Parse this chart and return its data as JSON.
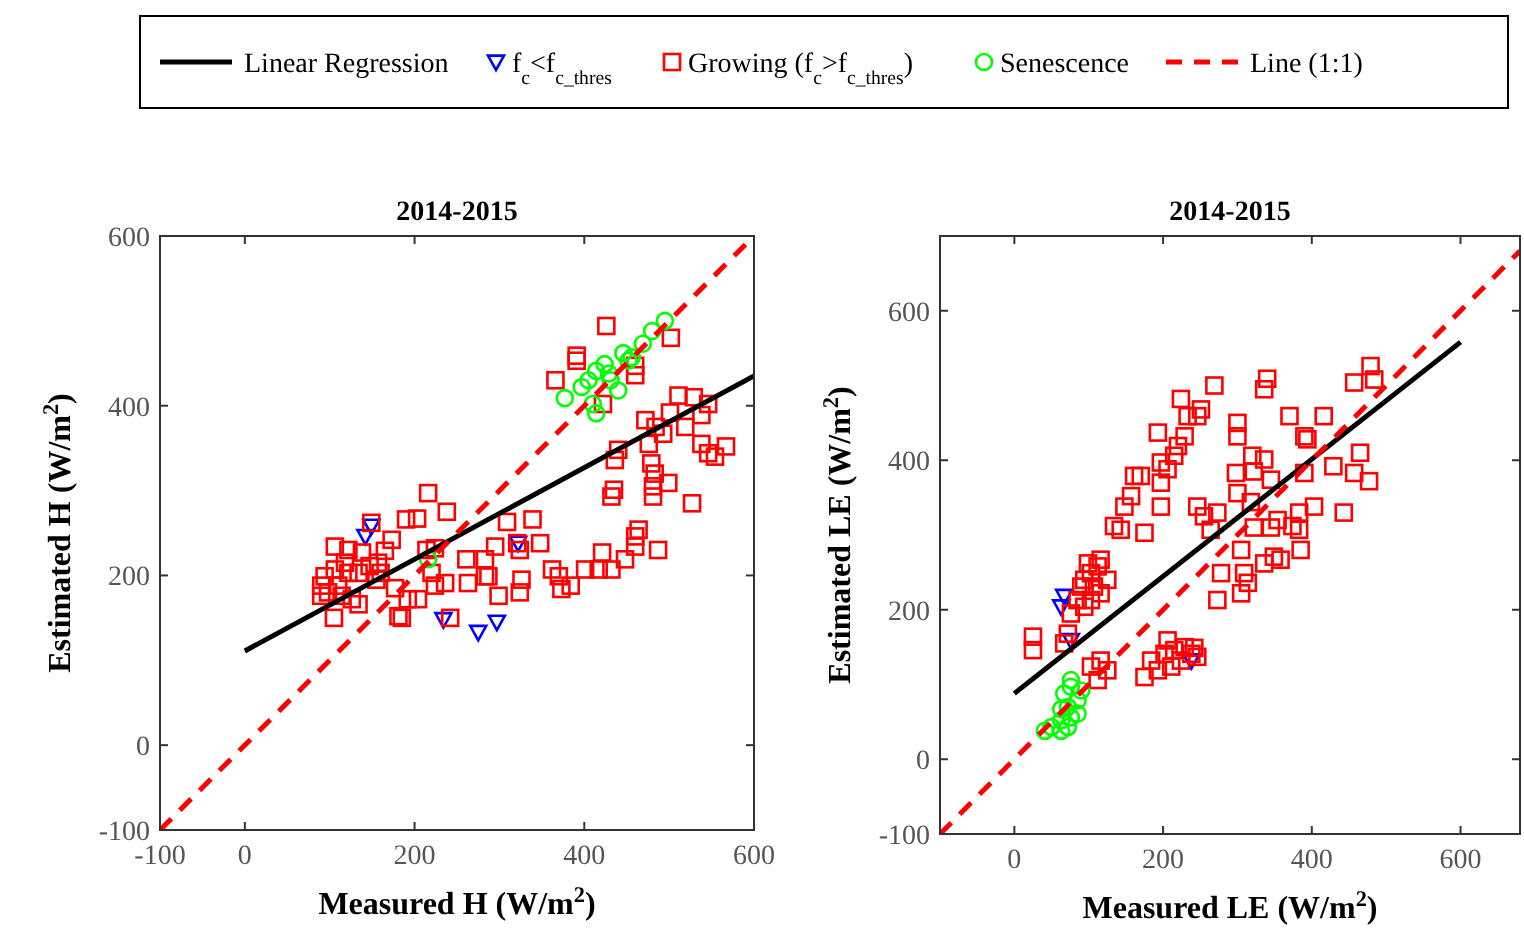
{
  "chart_data": [
    {
      "type": "scatter",
      "title": "2014-2015",
      "xlabel": "Measured H (W/m$^{2}$)",
      "ylabel": "Estimated H (W/m$^{2}$)",
      "xlim": [
        -100,
        600
      ],
      "ylim": [
        -100,
        600
      ],
      "xticks": [
        -100,
        0,
        200,
        400,
        600
      ],
      "yticks": [
        -100,
        0,
        200,
        400,
        600
      ],
      "grid": false,
      "legend": "top",
      "series": [
        {
          "name": "Linear Regression",
          "type": "line",
          "color": "#000000",
          "line_style": "solid",
          "marker": "none",
          "x": [
            0,
            600
          ],
          "values": [
            111,
            435
          ]
        },
        {
          "name": "f$_{c}$<f$_{c_thres}$",
          "type": "scatter",
          "color": "#0000ff",
          "marker": "triangle",
          "x": [
            142,
            149,
            234,
            275,
            297,
            322
          ],
          "values": [
            246,
            258,
            148,
            133,
            145,
            238
          ]
        },
        {
          "name": "Growing (f$_{c}$>f$_{c_thres}$)",
          "type": "scatter",
          "color": "#ff0000",
          "marker": "square",
          "x": [
            426,
            391,
            391,
            366,
            422,
            460,
            502,
            460,
            511,
            529,
            538,
            546,
            501,
            519,
            472,
            484,
            493,
            476,
            440,
            436,
            538,
            546,
            554,
            567,
            479,
            483,
            499,
            481,
            481,
            527,
            435,
            432,
            464,
            460,
            460,
            487,
            448,
            421,
            417,
            432,
            401,
            362,
            370,
            384,
            373,
            348,
            339,
            309,
            321,
            324,
            295,
            283,
            287,
            299,
            326,
            324,
            261,
            283,
            263,
            238,
            216,
            203,
            190,
            224,
            214,
            220,
            224,
            236,
            204,
            192,
            185,
            181,
            242,
            177,
            173,
            149,
            165,
            106,
            122,
            138,
            157,
            160,
            118,
            106,
            122,
            134,
            94,
            90,
            98,
            114,
            126,
            134,
            105,
            90,
            110,
            147,
            155
          ],
          "values": [
            494,
            459,
            453,
            430,
            402,
            436,
            480,
            447,
            412,
            410,
            389,
            402,
            392,
            375,
            383,
            375,
            367,
            355,
            348,
            336,
            355,
            344,
            340,
            352,
            332,
            320,
            309,
            305,
            293,
            285,
            301,
            293,
            254,
            246,
            234,
            230,
            219,
            227,
            207,
            207,
            207,
            207,
            199,
            188,
            184,
            238,
            266,
            263,
            238,
            230,
            234,
            219,
            199,
            176,
            195,
            180,
            219,
            199,
            191,
            275,
            297,
            267,
            266,
            232,
            230,
            203,
            188,
            191,
            172,
            172,
            150,
            152,
            150,
            185,
            242,
            262,
            229,
            234,
            230,
            227,
            215,
            203,
            215,
            207,
            203,
            203,
            199,
            188,
            180,
            176,
            172,
            166,
            150,
            176,
            188,
            211,
            195
          ]
        },
        {
          "name": "Senescence",
          "type": "scatter",
          "color": "#00ff00",
          "marker": "circle",
          "x": [
            216,
            377,
            397,
            410,
            414,
            405,
            424,
            429,
            440,
            446,
            456,
            469,
            480,
            495,
            431,
            452,
            414
          ],
          "values": [
            219,
            409,
            422,
            402,
            391,
            430,
            449,
            438,
            418,
            462,
            457,
            473,
            488,
            500,
            430,
            453,
            441
          ]
        },
        {
          "name": "Line (1:1)",
          "type": "line",
          "color": "#ff0000",
          "line_style": "dashed",
          "marker": "none",
          "x": [
            -100,
            600
          ],
          "values": [
            -100,
            600
          ]
        }
      ]
    },
    {
      "type": "scatter",
      "title": "2014-2015",
      "xlabel": "Measured LE (W/m$^{2}$)",
      "ylabel": "Estimated LE  (W/m$^{2}$)",
      "xlim": [
        -100,
        680
      ],
      "ylim": [
        -100,
        700
      ],
      "xticks": [
        0,
        200,
        400,
        600
      ],
      "yticks": [
        -100,
        0,
        200,
        400,
        600
      ],
      "grid": false,
      "series": [
        {
          "type": "line",
          "color": "#000000",
          "line_style": "solid",
          "marker": "none",
          "x": [
            0,
            600
          ],
          "values": [
            88,
            558
          ]
        },
        {
          "type": "scatter",
          "color": "#0000ff",
          "marker": "triangle",
          "x": [
            67,
            63,
            76,
            238
          ],
          "values": [
            218,
            204,
            159,
            132
          ]
        },
        {
          "type": "scatter",
          "color": "#ff0000",
          "marker": "square",
          "x": [
            25,
            25,
            67,
            72,
            76,
            85,
            90,
            94,
            103,
            112,
            116,
            125,
            116,
            103,
            94,
            107,
            99,
            103,
            116,
            125,
            112,
            134,
            143,
            148,
            157,
            161,
            170,
            175,
            197,
            197,
            197,
            193,
            206,
            215,
            220,
            229,
            224,
            233,
            246,
            251,
            269,
            246,
            255,
            264,
            273,
            278,
            273,
            300,
            298,
            300,
            300,
            305,
            309,
            305,
            314,
            320,
            318,
            322,
            322,
            336,
            336,
            340,
            345,
            345,
            354,
            358,
            336,
            349,
            370,
            374,
            383,
            383,
            385,
            390,
            390,
            394,
            403,
            416,
            429,
            443,
            457,
            457,
            465,
            479,
            484,
            477,
            175,
            184,
            193,
            202,
            206,
            211,
            215,
            224,
            229,
            238,
            242,
            246
          ],
          "values": [
            164,
            146,
            155,
            168,
            195,
            213,
            231,
            240,
            249,
            258,
            267,
            240,
            222,
            213,
            204,
            231,
            262,
            124,
            132,
            119,
            106,
            312,
            307,
            338,
            352,
            379,
            379,
            303,
            338,
            370,
            397,
            437,
            388,
            406,
            419,
            432,
            482,
            459,
            459,
            468,
            500,
            338,
            325,
            307,
            330,
            249,
            213,
            356,
            383,
            432,
            450,
            280,
            249,
            222,
            236,
            406,
            344,
            385,
            310,
            401,
            495,
            509,
            374,
            310,
            320,
            267,
            262,
            271,
            459,
            312,
            330,
            307,
            280,
            383,
            432,
            428,
            338,
            459,
            392,
            330,
            504,
            383,
            410,
            526,
            508,
            372,
            110,
            132,
            119,
            141,
            159,
            124,
            146,
            132,
            150,
            141,
            149,
            137
          ]
        },
        {
          "type": "scatter",
          "color": "#00ff00",
          "marker": "circle",
          "x": [
            41,
            50,
            63,
            72,
            67,
            76,
            63,
            76,
            85,
            90,
            76,
            72,
            63,
            85
          ],
          "values": [
            38,
            43,
            52,
            70,
            88,
            97,
            38,
            56,
            79,
            92,
            106,
            43,
            67,
            61
          ]
        },
        {
          "type": "line",
          "color": "#ff0000",
          "line_style": "dashed",
          "marker": "none",
          "x": [
            -100,
            680
          ],
          "values": [
            -100,
            680
          ]
        }
      ]
    }
  ]
}
